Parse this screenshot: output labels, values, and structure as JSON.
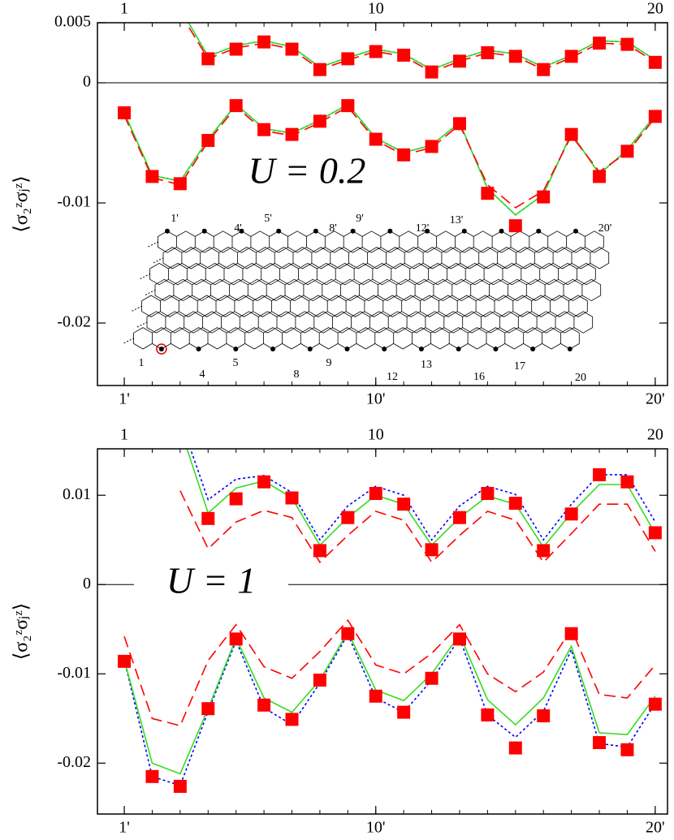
{
  "chart_data": [
    {
      "type": "line",
      "annotation": "U = 0.2",
      "ylabel": "⟨σ₂ᶻσⱼᶻ⟩",
      "x": [
        1,
        2,
        3,
        4,
        5,
        6,
        7,
        8,
        9,
        10,
        11,
        12,
        13,
        14,
        15,
        16,
        17,
        18,
        19,
        20
      ],
      "xlim": [
        0.04,
        20.44
      ],
      "xticks": [
        {
          "value": 1,
          "label": "1'"
        },
        {
          "value": 10,
          "label": "10'"
        },
        {
          "value": 20,
          "label": "20'"
        }
      ],
      "x2ticks": [
        1,
        10,
        20
      ],
      "ylim": [
        -0.0252,
        0.005
      ],
      "yticks": [
        0.005,
        0,
        -0.01,
        -0.02
      ],
      "hline": 0,
      "series": [
        {
          "color": "#0000ff",
          "style": "dotted",
          "values": [
            null,
            null,
            0.0062,
            0.0022,
            0.0031,
            0.0035,
            0.003,
            0.0013,
            0.0021,
            0.0028,
            0.0024,
            0.0011,
            0.002,
            0.0027,
            0.0024,
            0.0013,
            0.0023,
            0.0035,
            0.0034,
            0.0019
          ]
        },
        {
          "color": "#0000ff",
          "style": "dotted",
          "values": [
            -0.0025,
            -0.0077,
            -0.0082,
            -0.0047,
            -0.0018,
            -0.0038,
            -0.0042,
            -0.0031,
            -0.0018,
            -0.0046,
            -0.0058,
            -0.0052,
            -0.0033,
            -0.0088,
            -0.011,
            -0.0093,
            -0.0042,
            -0.0076,
            -0.0056,
            -0.0027
          ]
        },
        {
          "color": "#33dd22",
          "style": "solid",
          "values": [
            null,
            null,
            0.0062,
            0.0022,
            0.0031,
            0.0035,
            0.003,
            0.0013,
            0.0021,
            0.0028,
            0.0024,
            0.0011,
            0.002,
            0.0027,
            0.0024,
            0.0013,
            0.0023,
            0.0035,
            0.0034,
            0.0019
          ]
        },
        {
          "color": "#33dd22",
          "style": "solid",
          "values": [
            -0.0025,
            -0.0077,
            -0.0082,
            -0.0047,
            -0.0018,
            -0.0038,
            -0.0042,
            -0.0031,
            -0.0018,
            -0.0046,
            -0.0058,
            -0.0052,
            -0.0033,
            -0.0088,
            -0.011,
            -0.0093,
            -0.0042,
            -0.0076,
            -0.0056,
            -0.0027
          ]
        },
        {
          "color": "#ff0000",
          "style": "dashed",
          "values": [
            null,
            null,
            0.0058,
            0.002,
            0.0029,
            0.0033,
            0.0028,
            0.0011,
            0.0019,
            0.0026,
            0.0022,
            0.0009,
            0.0018,
            0.0025,
            0.0022,
            0.0011,
            0.0021,
            0.0033,
            0.0032,
            0.0017
          ]
        },
        {
          "color": "#ff0000",
          "style": "dashed",
          "values": [
            -0.0027,
            -0.0079,
            -0.0085,
            -0.0049,
            -0.002,
            -0.004,
            -0.0044,
            -0.0033,
            -0.002,
            -0.0048,
            -0.006,
            -0.0054,
            -0.0035,
            -0.0085,
            -0.0104,
            -0.009,
            -0.0044,
            -0.0074,
            -0.0058,
            -0.0029
          ]
        },
        {
          "color": "#ff0000",
          "style": "marker",
          "values": [
            null,
            null,
            null,
            0.002,
            0.0028,
            0.0034,
            0.0028,
            0.0011,
            0.002,
            0.0026,
            0.0023,
            0.0009,
            0.0018,
            0.0025,
            0.0022,
            0.0011,
            0.0022,
            0.0033,
            0.0032,
            0.0017
          ]
        },
        {
          "color": "#ff0000",
          "style": "marker",
          "values": [
            -0.0025,
            -0.0078,
            -0.0084,
            -0.0048,
            -0.0019,
            -0.0039,
            -0.0043,
            -0.0032,
            -0.0019,
            -0.0047,
            -0.006,
            -0.0053,
            -0.0034,
            -0.0092,
            -0.0119,
            -0.0095,
            -0.0043,
            -0.0078,
            -0.0057,
            -0.0028
          ]
        }
      ],
      "inset": {
        "top_labels": [
          "1'",
          "4'",
          "5'",
          "8'",
          "9'",
          "12'",
          "13'",
          "20'"
        ],
        "bottom_labels": [
          "1",
          "4",
          "5",
          "8",
          "9",
          "12",
          "13",
          "16",
          "17",
          "20"
        ]
      }
    },
    {
      "type": "line",
      "annotation": "U = 1",
      "ylabel": "⟨σ₂ᶻσⱼᶻ⟩",
      "x": [
        1,
        2,
        3,
        4,
        5,
        6,
        7,
        8,
        9,
        10,
        11,
        12,
        13,
        14,
        15,
        16,
        17,
        18,
        19,
        20
      ],
      "xlim": [
        0.04,
        20.44
      ],
      "xticks": [
        {
          "value": 1,
          "label": "1'"
        },
        {
          "value": 10,
          "label": "10'"
        },
        {
          "value": 20,
          "label": "20'"
        }
      ],
      "x2ticks": [
        1,
        10,
        20
      ],
      "ylim": [
        -0.0257,
        0.0152
      ],
      "yticks": [
        0.01,
        0,
        -0.01,
        -0.02
      ],
      "hline": 0,
      "series": [
        {
          "color": "#0000ff",
          "style": "dotted",
          "values": [
            null,
            null,
            0.0185,
            0.0095,
            0.0118,
            0.0122,
            0.0103,
            0.005,
            0.0088,
            0.011,
            0.01,
            0.005,
            0.0088,
            0.011,
            0.0101,
            0.005,
            0.009,
            0.0123,
            0.0123,
            0.007
          ]
        },
        {
          "color": "#0000ff",
          "style": "dotted",
          "values": [
            -0.0084,
            -0.0215,
            -0.0225,
            -0.0142,
            -0.0063,
            -0.0138,
            -0.0157,
            -0.011,
            -0.0056,
            -0.0127,
            -0.0143,
            -0.0107,
            -0.006,
            -0.0146,
            -0.0171,
            -0.0142,
            -0.0073,
            -0.0178,
            -0.0182,
            -0.0133
          ]
        },
        {
          "color": "#33dd22",
          "style": "solid",
          "values": [
            null,
            null,
            0.0175,
            0.008,
            0.0108,
            0.0116,
            0.0097,
            0.0044,
            0.0075,
            0.01,
            0.009,
            0.0044,
            0.0075,
            0.0099,
            0.009,
            0.0042,
            0.008,
            0.0112,
            0.0112,
            0.0057
          ]
        },
        {
          "color": "#33dd22",
          "style": "solid",
          "values": [
            -0.0084,
            -0.02,
            -0.0212,
            -0.0139,
            -0.006,
            -0.0127,
            -0.0143,
            -0.0107,
            -0.0053,
            -0.0118,
            -0.013,
            -0.01,
            -0.0056,
            -0.0129,
            -0.0157,
            -0.0127,
            -0.0069,
            -0.0166,
            -0.0168,
            -0.0125
          ]
        },
        {
          "color": "#ff0000",
          "style": "dashed",
          "values": [
            null,
            null,
            0.0105,
            0.004,
            0.007,
            0.0083,
            0.0075,
            0.0025,
            0.0055,
            0.0082,
            0.0072,
            0.0025,
            0.0055,
            0.0082,
            0.0072,
            0.0025,
            0.0057,
            0.009,
            0.009,
            0.0037
          ]
        },
        {
          "color": "#ff0000",
          "style": "dashed",
          "values": [
            -0.0058,
            -0.015,
            -0.0158,
            -0.0085,
            -0.0045,
            -0.0092,
            -0.0105,
            -0.0075,
            -0.004,
            -0.009,
            -0.01,
            -0.0077,
            -0.0045,
            -0.01,
            -0.012,
            -0.0098,
            -0.005,
            -0.0123,
            -0.0127,
            -0.009
          ]
        },
        {
          "color": "#ff0000",
          "style": "marker",
          "values": [
            null,
            null,
            null,
            0.0074,
            0.0096,
            0.0115,
            0.0097,
            0.0038,
            0.0075,
            0.0102,
            0.009,
            0.0039,
            0.0075,
            0.0102,
            0.0091,
            0.0038,
            0.0079,
            0.0123,
            0.0115,
            0.0058
          ]
        },
        {
          "color": "#ff0000",
          "style": "marker",
          "values": [
            -0.0086,
            -0.0215,
            -0.0226,
            -0.0139,
            -0.0061,
            -0.0135,
            -0.0151,
            -0.0107,
            -0.0055,
            -0.0125,
            -0.0143,
            -0.0105,
            -0.0061,
            -0.0146,
            -0.0183,
            -0.0147,
            -0.0055,
            -0.0177,
            -0.0185,
            -0.0134
          ]
        }
      ]
    }
  ]
}
